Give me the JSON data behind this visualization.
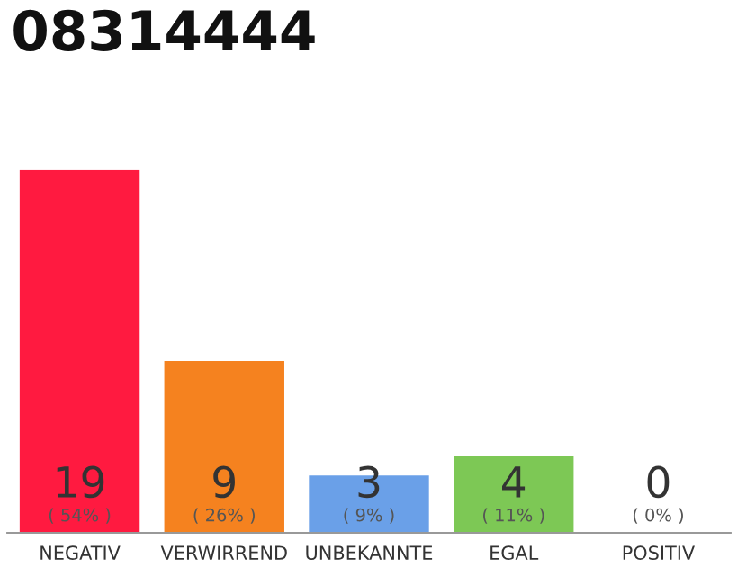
{
  "chart_data": {
    "type": "bar",
    "title": "08314444",
    "categories": [
      "NEGATIV",
      "VERWIRREND",
      "UNBEKANNTE",
      "EGAL",
      "POSITIV"
    ],
    "values": [
      19,
      9,
      3,
      4,
      0
    ],
    "colors": [
      "#ff1a40",
      "#f5821f",
      "#6aa0e8",
      "#7dc855",
      "#bbbbbb"
    ],
    "value_labels": [
      "19\n( 54% )",
      "9\n( 26% )",
      "3\n( 9% )",
      "4\n( 11% )",
      "0\n( 0% )"
    ],
    "grid": false,
    "legend": false
  }
}
